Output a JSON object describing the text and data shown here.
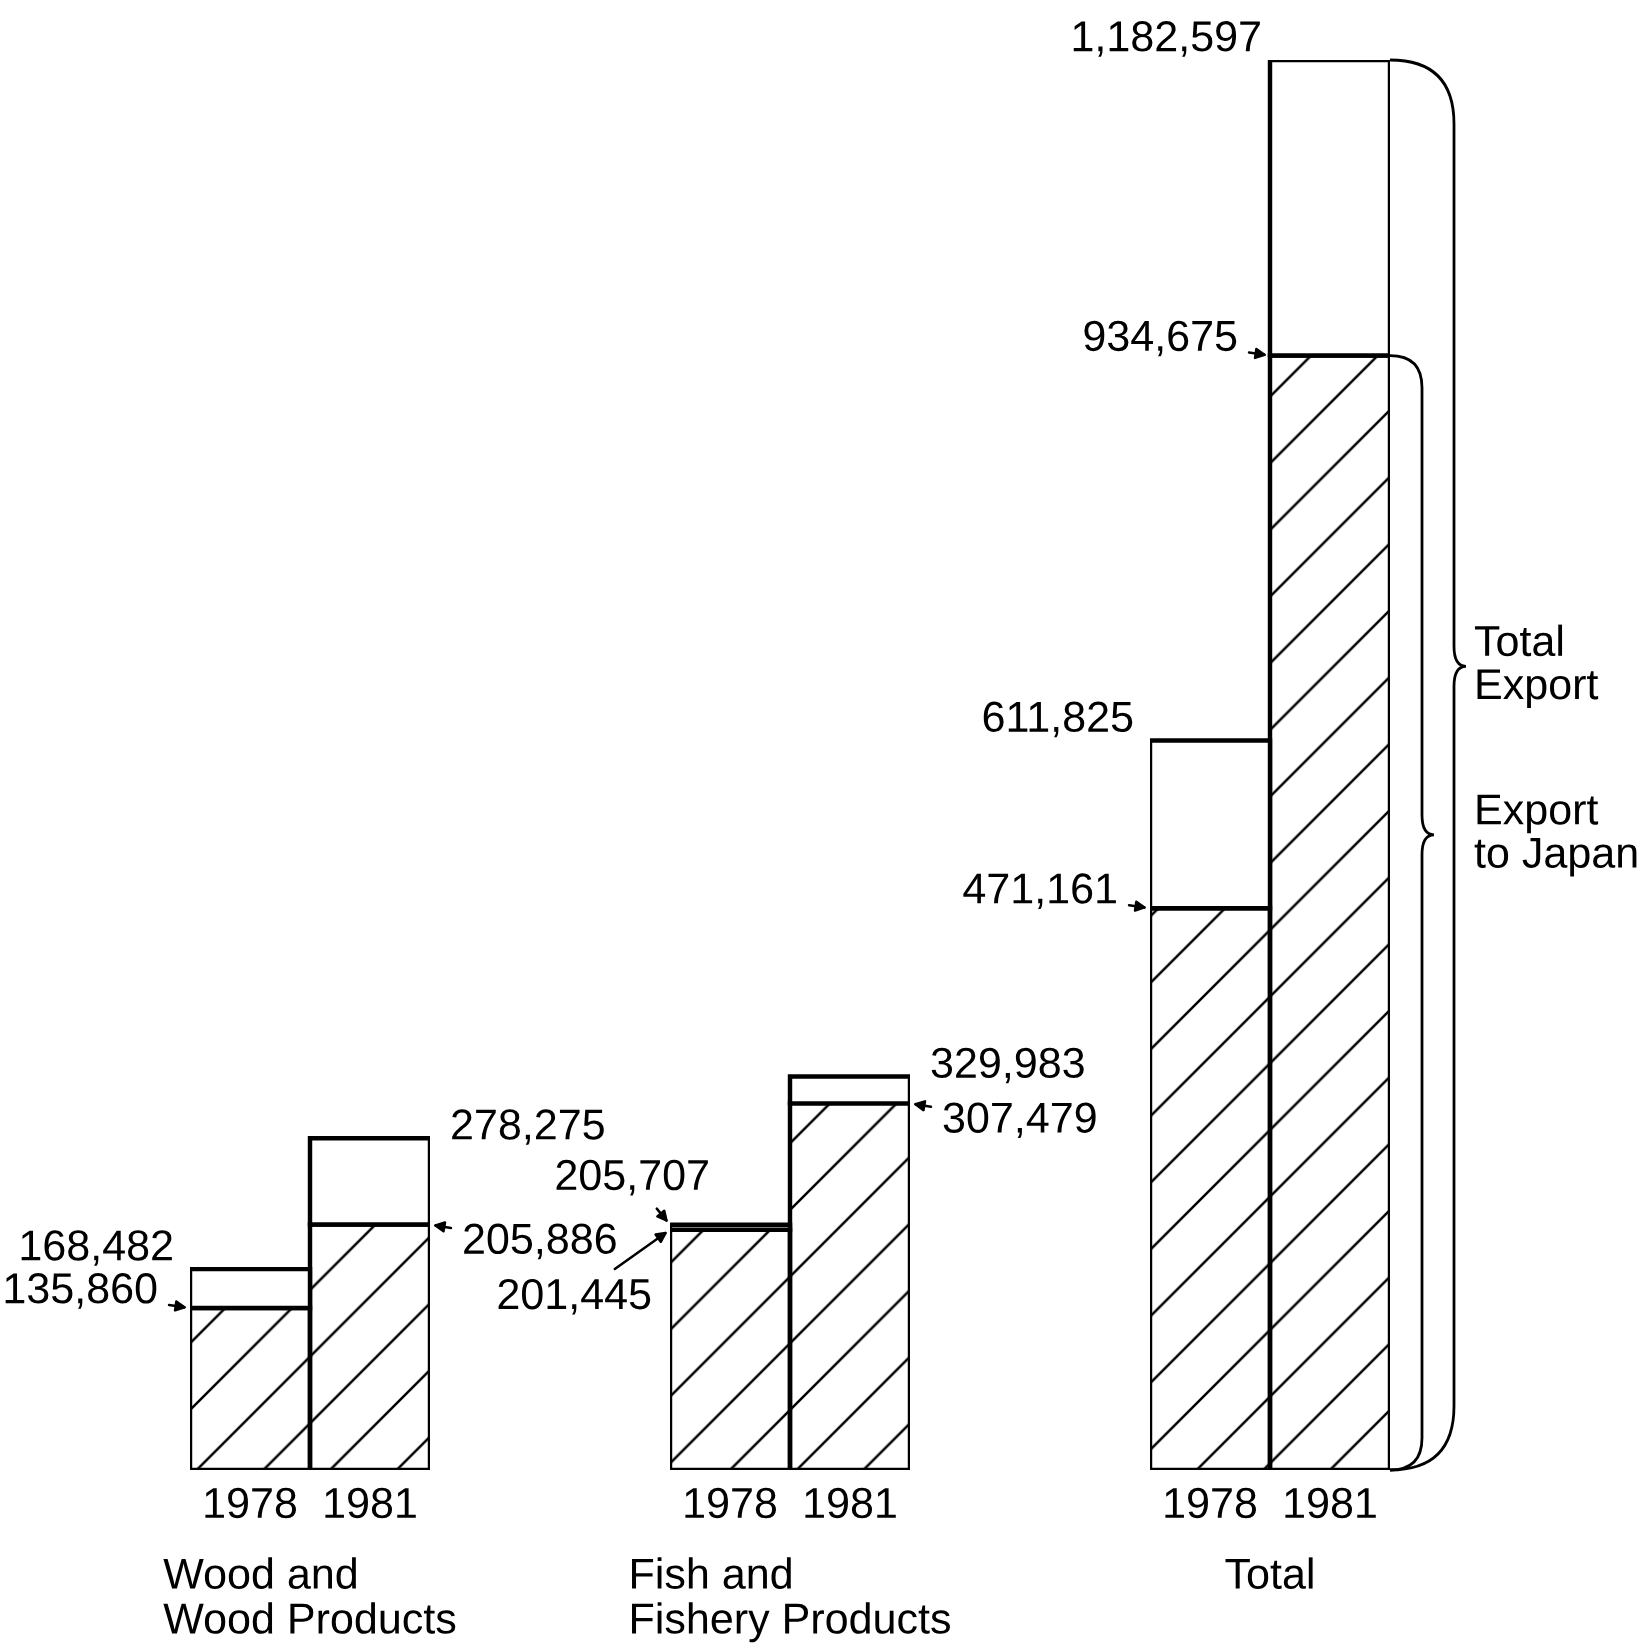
{
  "chart_data": [
    {
      "type": "bar",
      "stacked": true,
      "categories": [
        "1978",
        "1981"
      ],
      "xlabel": "Wood and\nWood Products",
      "series": [
        {
          "color": "#000000",
          "values": [
            135860,
            205886
          ],
          "value_labels": [
            "135,860",
            "205,886"
          ]
        },
        {
          "color": "#ffffff",
          "values": [
            32622,
            72389
          ]
        }
      ],
      "totals": [
        "168,482",
        "278,275"
      ]
    },
    {
      "type": "bar",
      "stacked": true,
      "categories": [
        "1978",
        "1981"
      ],
      "xlabel": "Fish and\nFishery Products",
      "series": [
        {
          "color": "#000000",
          "values": [
            201445,
            307479
          ],
          "value_labels": [
            "201,445",
            "307,479"
          ]
        },
        {
          "color": "#ffffff",
          "values": [
            4262,
            22504
          ]
        }
      ],
      "totals": [
        "205,707",
        "329,983"
      ]
    },
    {
      "type": "bar",
      "stacked": true,
      "categories": [
        "1978",
        "1981"
      ],
      "xlabel": "Total",
      "legend": "right",
      "series": [
        {
          "name": "Export\nto Japan",
          "color": "#000000",
          "values": [
            471161,
            934675
          ],
          "value_labels": [
            "471,161",
            "934,675"
          ]
        },
        {
          "name": "Total\nExport",
          "color": "#ffffff",
          "values": [
            140664,
            247922
          ]
        }
      ],
      "totals": [
        "611,825",
        "1,182,597"
      ]
    }
  ]
}
